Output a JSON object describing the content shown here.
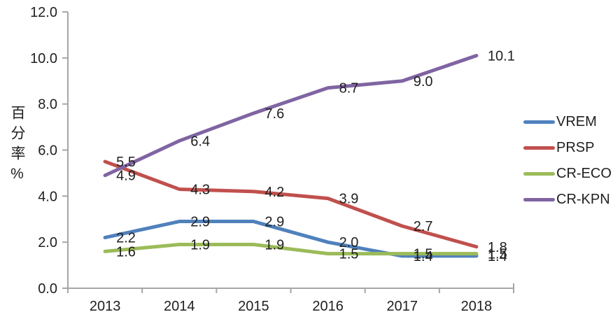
{
  "chart_data": {
    "type": "line",
    "title": "",
    "xlabel": "",
    "ylabel": "百分率%",
    "categories": [
      "2013",
      "2014",
      "2015",
      "2016",
      "2017",
      "2018"
    ],
    "series": [
      {
        "name": "VREM",
        "color": "#4F81BD",
        "values": [
          2.2,
          2.9,
          2.9,
          2.0,
          1.4,
          1.4
        ]
      },
      {
        "name": "PRSP",
        "color": "#C0504D",
        "values": [
          5.5,
          4.3,
          4.2,
          3.9,
          2.7,
          1.8
        ]
      },
      {
        "name": "CR-ECO",
        "color": "#9BBB59",
        "values": [
          1.6,
          1.9,
          1.9,
          1.5,
          1.5,
          1.5
        ]
      },
      {
        "name": "CR-KPN",
        "color": "#8064A2",
        "values": [
          4.9,
          6.4,
          7.6,
          8.7,
          9.0,
          10.1
        ]
      }
    ],
    "y_tick_labels": [
      "0.0",
      "2.0",
      "4.0",
      "6.0",
      "8.0",
      "10.0",
      "12.0"
    ],
    "ylim": [
      0,
      12
    ],
    "grid": false,
    "data_labels": true,
    "legend_position": "right",
    "axis_color": "#a6a6a6",
    "text_color": "#1f1f1f"
  }
}
